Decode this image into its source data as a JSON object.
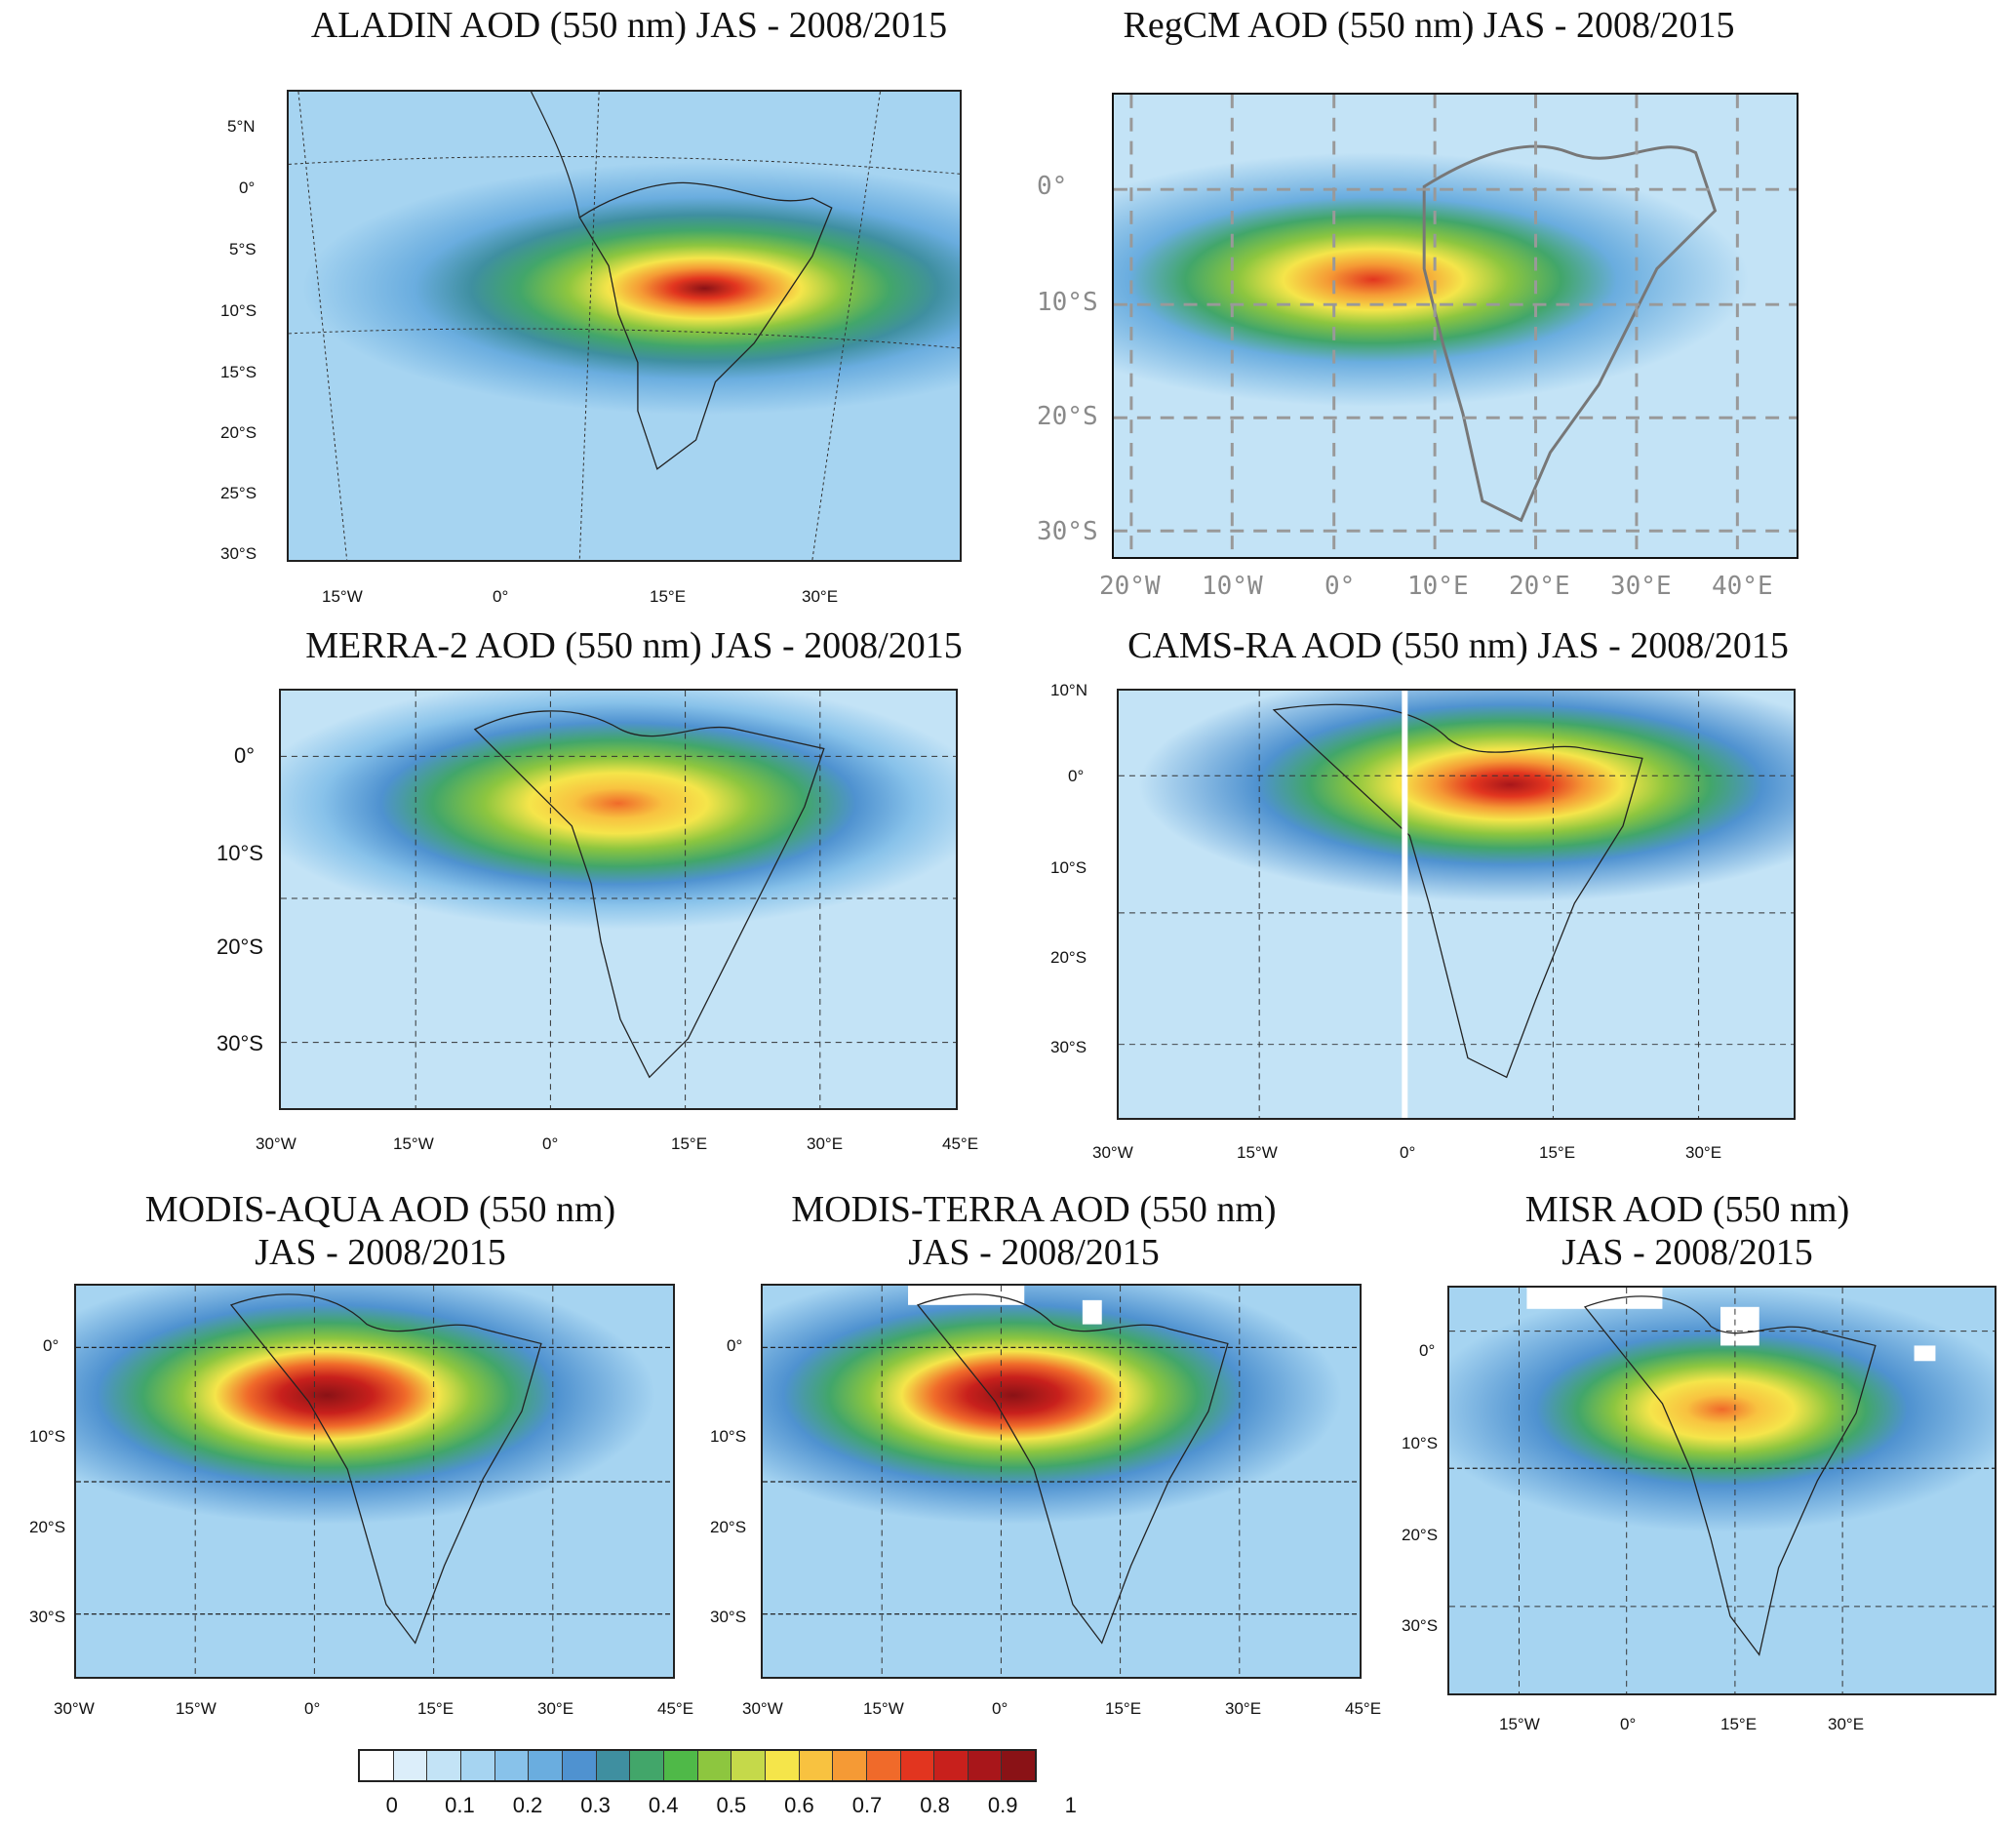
{
  "panels": [
    {
      "id": "aladin",
      "title_line1": "ALADIN AOD (550 nm) JAS - 2008/2015",
      "title_line2": "",
      "lat_labels": [
        "5°N",
        "0°",
        "5°S",
        "10°S",
        "15°S",
        "20°S",
        "25°S",
        "30°S"
      ],
      "lon_labels": [
        "15°W",
        "0°",
        "15°E",
        "30°E"
      ]
    },
    {
      "id": "regcm",
      "title_line1": "RegCM AOD (550 nm) JAS - 2008/2015",
      "title_line2": "",
      "lat_labels": [
        "0°",
        "10°S",
        "20°S",
        "30°S"
      ],
      "lon_labels": [
        "20°W",
        "10°W",
        "0°",
        "10°E",
        "20°E",
        "30°E",
        "40°E"
      ]
    },
    {
      "id": "merra2",
      "title_line1": "MERRA-2 AOD (550 nm) JAS - 2008/2015",
      "title_line2": "",
      "lat_labels": [
        "0°",
        "10°S",
        "20°S",
        "30°S"
      ],
      "lon_labels": [
        "30°W",
        "15°W",
        "0°",
        "15°E",
        "30°E",
        "45°E"
      ]
    },
    {
      "id": "camsra",
      "title_line1": "CAMS-RA AOD (550 nm) JAS - 2008/2015",
      "title_line2": "",
      "lat_labels": [
        "10°N",
        "0°",
        "10°S",
        "20°S",
        "30°S"
      ],
      "lon_labels": [
        "30°W",
        "15°W",
        "0°",
        "15°E",
        "30°E"
      ]
    },
    {
      "id": "modis_aqua",
      "title_line1": "MODIS-AQUA AOD (550 nm)",
      "title_line2": "JAS - 2008/2015",
      "lat_labels": [
        "0°",
        "10°S",
        "20°S",
        "30°S"
      ],
      "lon_labels": [
        "30°W",
        "15°W",
        "0°",
        "15°E",
        "30°E",
        "45°E"
      ]
    },
    {
      "id": "modis_terra",
      "title_line1": "MODIS-TERRA AOD (550 nm)",
      "title_line2": "JAS - 2008/2015",
      "lat_labels": [
        "0°",
        "10°S",
        "20°S",
        "30°S"
      ],
      "lon_labels": [
        "30°W",
        "15°W",
        "0°",
        "15°E",
        "30°E",
        "45°E"
      ]
    },
    {
      "id": "misr",
      "title_line1": "MISR AOD (550 nm)",
      "title_line2": "JAS - 2008/2015",
      "lat_labels": [
        "0°",
        "10°S",
        "20°S",
        "30°S"
      ],
      "lon_labels": [
        "15°W",
        "0°",
        "15°E",
        "30°E"
      ]
    }
  ],
  "colorbar": {
    "colors": [
      "#ffffff",
      "#dceefa",
      "#c3e3f6",
      "#a6d4f1",
      "#88c2ea",
      "#6aaddf",
      "#4f92d0",
      "#3f8fa0",
      "#42a66a",
      "#4fb948",
      "#8dc63f",
      "#c5d94a",
      "#f5e54a",
      "#f8c240",
      "#f59a35",
      "#f06a2a",
      "#e2351f",
      "#c8201c",
      "#a8161a",
      "#8a1216"
    ],
    "tick_labels": [
      "0",
      "0.1",
      "0.2",
      "0.3",
      "0.4",
      "0.5",
      "0.6",
      "0.7",
      "0.8",
      "0.9",
      "1"
    ]
  },
  "palette": {
    "ocean": "#c3e3f6",
    "land": "#a6d4f1"
  }
}
